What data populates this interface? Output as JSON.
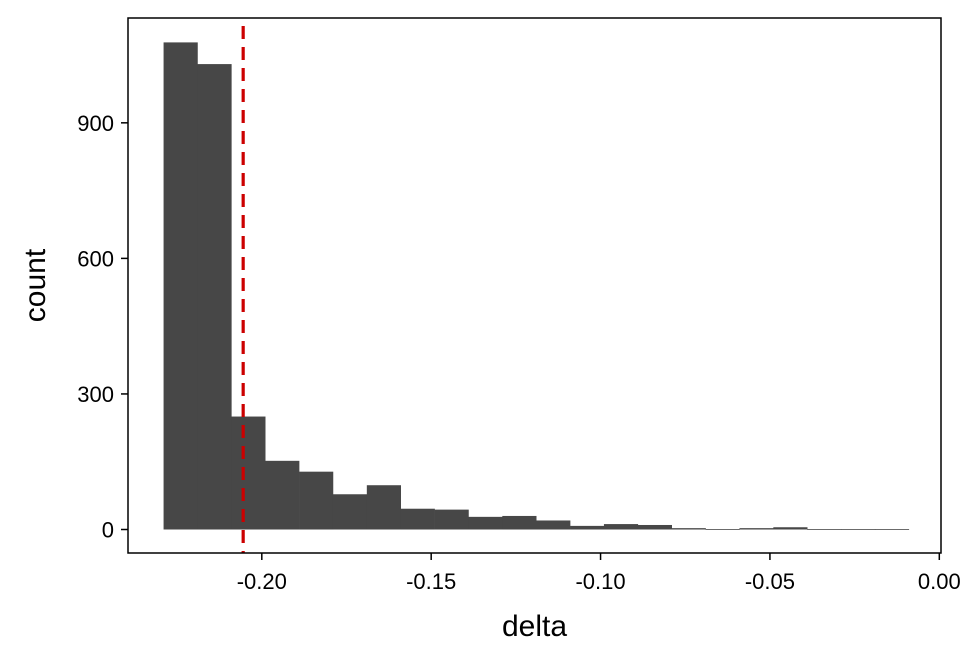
{
  "chart_data": {
    "type": "bar",
    "subtype": "histogram",
    "xlabel": "delta",
    "ylabel": "count",
    "xlim": [
      -0.2395,
      0.0005
    ],
    "ylim": [
      -52,
      1132
    ],
    "x_ticks": [
      {
        "value": -0.2,
        "label": "-0.20"
      },
      {
        "value": -0.15,
        "label": "-0.15"
      },
      {
        "value": -0.1,
        "label": "-0.10"
      },
      {
        "value": -0.05,
        "label": "-0.05"
      },
      {
        "value": 0.0,
        "label": "0.00"
      }
    ],
    "y_ticks": [
      {
        "value": 0,
        "label": "0"
      },
      {
        "value": 300,
        "label": "300"
      },
      {
        "value": 600,
        "label": "600"
      },
      {
        "value": 900,
        "label": "900"
      }
    ],
    "bins": [
      {
        "x0": -0.229,
        "x1": -0.219,
        "count": 1078
      },
      {
        "x0": -0.219,
        "x1": -0.209,
        "count": 1030
      },
      {
        "x0": -0.209,
        "x1": -0.199,
        "count": 250
      },
      {
        "x0": -0.199,
        "x1": -0.189,
        "count": 152
      },
      {
        "x0": -0.189,
        "x1": -0.179,
        "count": 128
      },
      {
        "x0": -0.179,
        "x1": -0.169,
        "count": 78
      },
      {
        "x0": -0.169,
        "x1": -0.159,
        "count": 98
      },
      {
        "x0": -0.159,
        "x1": -0.149,
        "count": 46
      },
      {
        "x0": -0.149,
        "x1": -0.139,
        "count": 44
      },
      {
        "x0": -0.139,
        "x1": -0.129,
        "count": 28
      },
      {
        "x0": -0.129,
        "x1": -0.119,
        "count": 30
      },
      {
        "x0": -0.119,
        "x1": -0.109,
        "count": 20
      },
      {
        "x0": -0.109,
        "x1": -0.099,
        "count": 8
      },
      {
        "x0": -0.099,
        "x1": -0.089,
        "count": 12
      },
      {
        "x0": -0.089,
        "x1": -0.079,
        "count": 10
      },
      {
        "x0": -0.079,
        "x1": -0.069,
        "count": 3
      },
      {
        "x0": -0.069,
        "x1": -0.059,
        "count": 1
      },
      {
        "x0": -0.059,
        "x1": -0.049,
        "count": 3
      },
      {
        "x0": -0.049,
        "x1": -0.039,
        "count": 5
      },
      {
        "x0": -0.039,
        "x1": -0.029,
        "count": 1
      },
      {
        "x0": -0.029,
        "x1": -0.019,
        "count": 1
      },
      {
        "x0": -0.019,
        "x1": -0.009,
        "count": 1
      }
    ],
    "reference_line": {
      "x": -0.2055,
      "style": "dashed"
    },
    "grid": false,
    "legend": "none",
    "colors": {
      "bars": "#474747",
      "reference_line": "#cc0000",
      "axis": "#000000",
      "background": "#ffffff"
    }
  }
}
